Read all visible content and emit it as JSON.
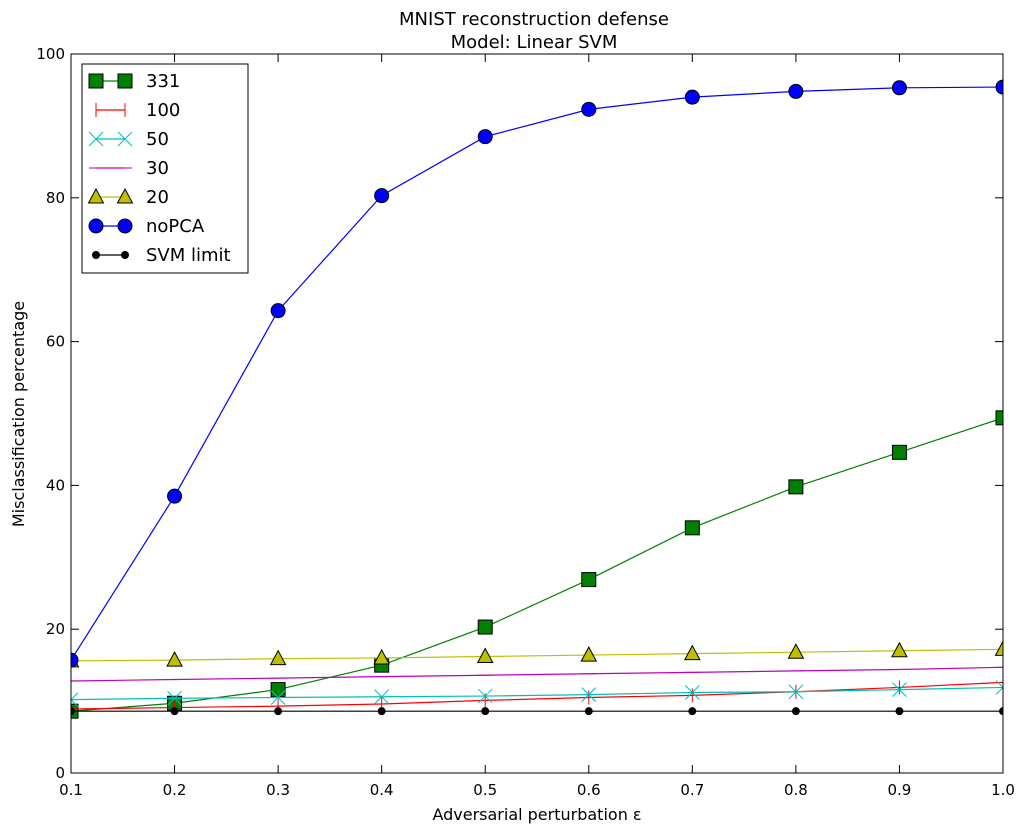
{
  "chart_data": {
    "type": "line",
    "title": "MNIST reconstruction defense",
    "subtitle": "Model: Linear SVM",
    "xlabel": "Adversarial perturbation ε",
    "ylabel": "Misclassification percentage",
    "xlim": [
      0.1,
      1.0
    ],
    "ylim": [
      0,
      100
    ],
    "x_ticks": [
      "0.1",
      "0.2",
      "0.3",
      "0.4",
      "0.5",
      "0.6",
      "0.7",
      "0.8",
      "0.9",
      "1.0"
    ],
    "y_ticks": [
      "0",
      "20",
      "40",
      "60",
      "80",
      "100"
    ],
    "grid": false,
    "legend_position": "upper-left",
    "x": [
      0.1,
      0.2,
      0.3,
      0.4,
      0.5,
      0.6,
      0.7,
      0.8,
      0.9,
      1.0
    ],
    "series": [
      {
        "name": "331",
        "color": "#008000",
        "marker": "square",
        "values": [
          8.6,
          9.7,
          11.6,
          15.0,
          20.3,
          26.9,
          34.1,
          39.8,
          44.6,
          49.4
        ]
      },
      {
        "name": "100",
        "color": "#ff0000",
        "marker": "vline",
        "values": [
          8.9,
          9.1,
          9.3,
          9.6,
          10.1,
          10.5,
          10.8,
          11.3,
          11.9,
          12.6
        ]
      },
      {
        "name": "50",
        "color": "#00bfbf",
        "marker": "x",
        "values": [
          10.2,
          10.4,
          10.5,
          10.6,
          10.7,
          10.9,
          11.2,
          11.3,
          11.6,
          11.9
        ]
      },
      {
        "name": "30",
        "color": "#bf00bf",
        "marker": "hline",
        "values": [
          12.8,
          13.0,
          13.2,
          13.4,
          13.6,
          13.8,
          14.0,
          14.2,
          14.4,
          14.7
        ]
      },
      {
        "name": "20",
        "color": "#bfbf00",
        "marker": "triangle",
        "values": [
          15.6,
          15.7,
          15.9,
          16.0,
          16.2,
          16.4,
          16.6,
          16.8,
          17.0,
          17.2
        ]
      },
      {
        "name": "noPCA",
        "color": "#0000ff",
        "marker": "circle",
        "values": [
          15.7,
          38.5,
          64.3,
          80.3,
          88.5,
          92.3,
          94.0,
          94.8,
          95.3,
          95.4
        ]
      },
      {
        "name": "SVM limit",
        "color": "#000000",
        "marker": "dot",
        "values": [
          8.6,
          8.6,
          8.6,
          8.6,
          8.6,
          8.6,
          8.6,
          8.6,
          8.6,
          8.6
        ]
      }
    ]
  }
}
